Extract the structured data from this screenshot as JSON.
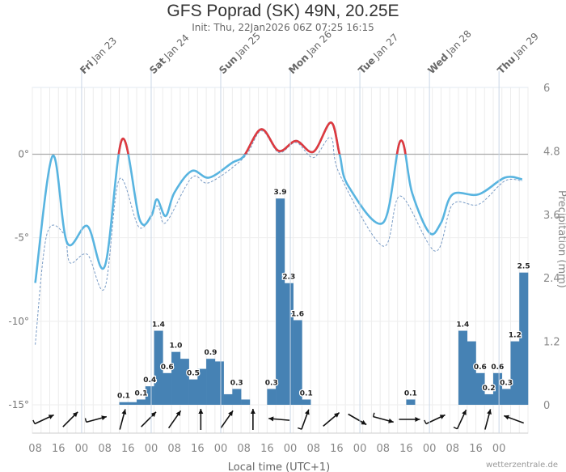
{
  "title": "GFS Poprad (SK) 49N, 20.25E",
  "subtitle": "Init: Thu, 22Jan2026 06Z 07:25 16:15",
  "credit": "wetterzentrale.de",
  "colors": {
    "temp_below_zero": "#58b4e0",
    "temp_above_zero": "#e0393e",
    "dewpoint": "#7a9cc6",
    "precip": "#4682b4"
  },
  "chart_data": {
    "type": "bar+line",
    "xlabel": "Local time (UTC+1)",
    "ylabel_right": "Precipitation (mm)",
    "x_range": [
      "2026-01-22T07:00",
      "2026-01-29T10:00"
    ],
    "y_left": {
      "range": [
        -15,
        4
      ],
      "ticks": [
        {
          "v": 0,
          "label": "0°"
        },
        {
          "v": -5,
          "label": "-5°"
        },
        {
          "v": -10,
          "label": "-10°"
        },
        {
          "v": -15,
          "label": "-15°"
        }
      ]
    },
    "y_right": {
      "range": [
        0,
        6
      ],
      "ticks": [
        {
          "v": 6,
          "label": "6"
        },
        {
          "v": 4.8,
          "label": "4.8"
        },
        {
          "v": 3.6,
          "label": "3.6"
        },
        {
          "v": 2.4,
          "label": "2.4"
        },
        {
          "v": 1.2,
          "label": "1.2"
        },
        {
          "v": 0,
          "label": "0"
        }
      ]
    },
    "x_tick_labels": [
      "08",
      "16",
      "00",
      "08",
      "16",
      "00",
      "08",
      "16",
      "00",
      "08",
      "16",
      "00",
      "08",
      "16",
      "00",
      "08",
      "16",
      "00",
      "08",
      "16",
      "00"
    ],
    "x_tick_start": "2026-01-22T08:00",
    "day_labels": [
      {
        "date": "2026-01-23T00:00",
        "weekday": "Fri",
        "day": "Jan 23"
      },
      {
        "date": "2026-01-24T00:00",
        "weekday": "Sat",
        "day": "Jan 24"
      },
      {
        "date": "2026-01-25T00:00",
        "weekday": "Sun",
        "day": "Jan 25"
      },
      {
        "date": "2026-01-26T00:00",
        "weekday": "Mon",
        "day": "Jan 26"
      },
      {
        "date": "2026-01-27T00:00",
        "weekday": "Tue",
        "day": "Jan 27"
      },
      {
        "date": "2026-01-28T00:00",
        "weekday": "Wed",
        "day": "Jan 28"
      },
      {
        "date": "2026-01-29T00:00",
        "weekday": "Thu",
        "day": "Jan 29"
      }
    ],
    "temperature": [
      [
        "2026-01-22T08:00",
        -7.7
      ],
      [
        "2026-01-22T14:00",
        -0.1
      ],
      [
        "2026-01-22T19:00",
        -5.3
      ],
      [
        "2026-01-23T02:00",
        -4.3
      ],
      [
        "2026-01-23T08:00",
        -6.7
      ],
      [
        "2026-01-23T14:00",
        0.9
      ],
      [
        "2026-01-23T20:00",
        -3.9
      ],
      [
        "2026-01-24T00:00",
        -3.7
      ],
      [
        "2026-01-24T02:00",
        -2.7
      ],
      [
        "2026-01-24T05:00",
        -3.7
      ],
      [
        "2026-01-24T08:00",
        -2.3
      ],
      [
        "2026-01-24T14:00",
        -1.0
      ],
      [
        "2026-01-24T20:00",
        -1.4
      ],
      [
        "2026-01-25T04:00",
        -0.5
      ],
      [
        "2026-01-25T08:00",
        -0.1
      ],
      [
        "2026-01-25T14:00",
        1.5
      ],
      [
        "2026-01-25T20:00",
        0.2
      ],
      [
        "2026-01-26T02:00",
        0.8
      ],
      [
        "2026-01-26T08:00",
        0.15
      ],
      [
        "2026-01-26T14:00",
        1.9
      ],
      [
        "2026-01-26T17:00",
        0.0
      ],
      [
        "2026-01-26T20:00",
        -1.9
      ],
      [
        "2026-01-27T08:00",
        -4.1
      ],
      [
        "2026-01-27T14:00",
        0.8
      ],
      [
        "2026-01-27T18:00",
        -2.3
      ],
      [
        "2026-01-28T00:00",
        -4.7
      ],
      [
        "2026-01-28T04:00",
        -4.1
      ],
      [
        "2026-01-28T08:00",
        -2.4
      ],
      [
        "2026-01-28T17:00",
        -2.4
      ],
      [
        "2026-01-29T02:00",
        -1.4
      ],
      [
        "2026-01-29T08:00",
        -1.5
      ]
    ],
    "dewpoint": [
      [
        "2026-01-22T08:00",
        -11.4
      ],
      [
        "2026-01-22T12:00",
        -4.8
      ],
      [
        "2026-01-22T18:00",
        -4.8
      ],
      [
        "2026-01-22T20:00",
        -6.5
      ],
      [
        "2026-01-23T02:00",
        -6.0
      ],
      [
        "2026-01-23T08:00",
        -8.0
      ],
      [
        "2026-01-23T13:00",
        -1.5
      ],
      [
        "2026-01-23T20:00",
        -4.4
      ],
      [
        "2026-01-24T02:00",
        -3.1
      ],
      [
        "2026-01-24T05:00",
        -4.1
      ],
      [
        "2026-01-24T14:00",
        -1.4
      ],
      [
        "2026-01-24T20:00",
        -1.7
      ],
      [
        "2026-01-25T08:00",
        -0.2
      ],
      [
        "2026-01-25T14:00",
        1.4
      ],
      [
        "2026-01-25T20:00",
        0.1
      ],
      [
        "2026-01-26T02:00",
        0.7
      ],
      [
        "2026-01-26T08:00",
        -0.2
      ],
      [
        "2026-01-26T14:00",
        1.0
      ],
      [
        "2026-01-26T17:00",
        -1.2
      ],
      [
        "2026-01-27T08:00",
        -5.5
      ],
      [
        "2026-01-27T14:00",
        -2.5
      ],
      [
        "2026-01-28T02:00",
        -5.8
      ],
      [
        "2026-01-28T08:00",
        -3.0
      ],
      [
        "2026-01-28T17:00",
        -3.0
      ],
      [
        "2026-01-29T02:00",
        -1.6
      ],
      [
        "2026-01-29T08:00",
        -1.6
      ]
    ],
    "precip_start": "2026-01-22T07:00",
    "precip_step_hours": 3,
    "precip_mm": [
      0,
      0,
      0,
      0,
      0,
      0,
      0,
      0,
      0,
      0,
      0.05,
      0.05,
      0.1,
      0.35,
      1.4,
      0.6,
      1.0,
      0.87,
      0.48,
      0.68,
      0.87,
      0.82,
      0.2,
      0.3,
      0.1,
      0,
      0,
      0.3,
      3.9,
      2.3,
      1.6,
      0.1,
      0,
      0,
      0,
      0,
      0,
      0,
      0,
      0,
      0,
      0,
      0,
      0.1,
      0,
      0,
      0,
      0,
      0,
      1.4,
      1.2,
      0.6,
      0.2,
      0.6,
      0.3,
      1.2,
      2.5
    ],
    "precip_labels": [
      {
        "bin": 10,
        "text": "0.1"
      },
      {
        "bin": 12,
        "text": "0.1"
      },
      {
        "bin": 13,
        "text": "0.4"
      },
      {
        "bin": 14,
        "text": "1.4"
      },
      {
        "bin": 15,
        "text": "0.6"
      },
      {
        "bin": 16,
        "text": "1.0"
      },
      {
        "bin": 18,
        "text": "0.5"
      },
      {
        "bin": 20,
        "text": "0.9"
      },
      {
        "bin": 23,
        "text": "0.3"
      },
      {
        "bin": 27,
        "text": "0.3"
      },
      {
        "bin": 28,
        "text": "3.9"
      },
      {
        "bin": 29,
        "text": "2.3"
      },
      {
        "bin": 30,
        "text": "1.6"
      },
      {
        "bin": 31,
        "text": "0.1"
      },
      {
        "bin": 43,
        "text": "0.1"
      },
      {
        "bin": 49,
        "text": "1.4"
      },
      {
        "bin": 51,
        "text": "0.6"
      },
      {
        "bin": 52,
        "text": "0.2"
      },
      {
        "bin": 53,
        "text": "0.6"
      },
      {
        "bin": 54,
        "text": "0.3"
      },
      {
        "bin": 55,
        "text": "1.2"
      },
      {
        "bin": 56,
        "text": "2.5"
      }
    ],
    "wind_heading_deg": [
      65,
      45,
      75,
      15,
      45,
      35,
      0,
      35,
      0,
      275,
      20,
      50,
      120,
      105,
      90,
      65,
      25,
      15,
      290
    ],
    "wind_barb": [
      true,
      false,
      true,
      false,
      false,
      false,
      false,
      false,
      false,
      false,
      true,
      false,
      false,
      true,
      false,
      true,
      true,
      false,
      false
    ],
    "grid": true
  }
}
